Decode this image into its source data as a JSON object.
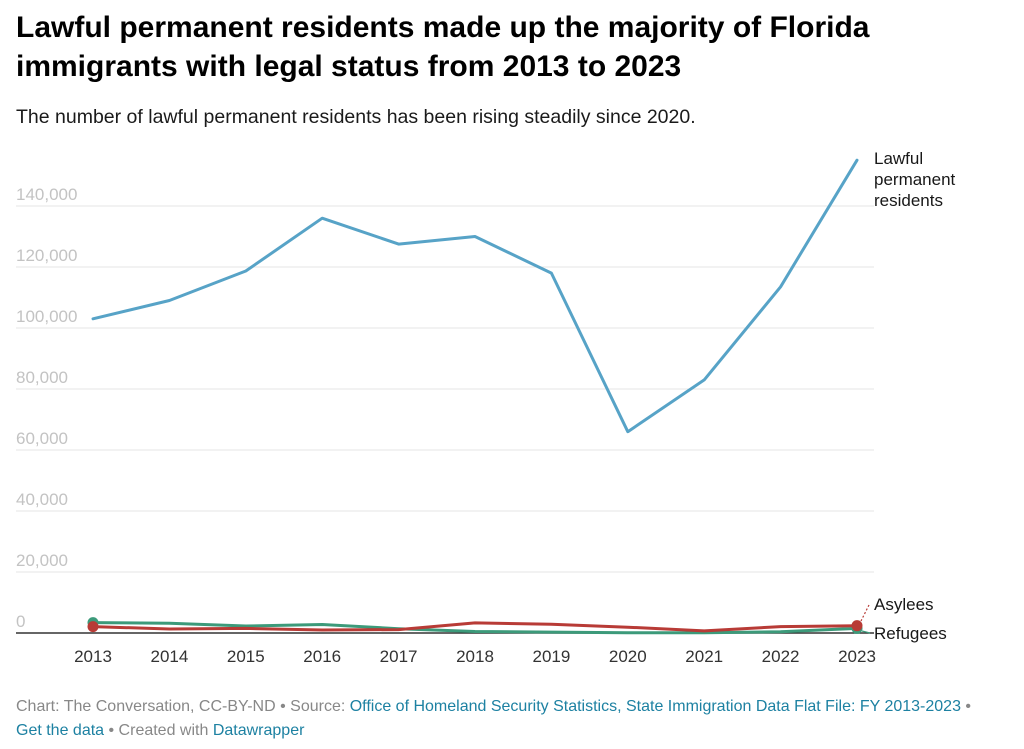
{
  "title": "Lawful permanent residents made up the majority of Florida immigrants with legal status from 2013 to 2023",
  "subtitle": "The number of lawful permanent residents has been rising steadily since 2020.",
  "chart_data": {
    "type": "line",
    "x": [
      "2013",
      "2014",
      "2015",
      "2016",
      "2017",
      "2018",
      "2019",
      "2020",
      "2021",
      "2022",
      "2023"
    ],
    "ylim": [
      0,
      150000
    ],
    "yticks": [
      "0",
      "20,000",
      "40,000",
      "60,000",
      "80,000",
      "100,000",
      "120,000",
      "140,000"
    ],
    "ytick_values": [
      0,
      20000,
      40000,
      60000,
      80000,
      100000,
      120000,
      140000
    ],
    "grid": true,
    "series": [
      {
        "name": "Lawful permanent residents",
        "name_lines": [
          "Lawful",
          "permanent",
          "residents"
        ],
        "color": "#57a3c7",
        "values": [
          103000,
          109000,
          118700,
          136000,
          127500,
          130000,
          118000,
          66000,
          83000,
          113500,
          155000
        ]
      },
      {
        "name": "Asylees",
        "name_lines": [
          "Asylees"
        ],
        "color": "#b83b36",
        "values": [
          2100,
          1300,
          1500,
          1000,
          1100,
          3300,
          2900,
          1900,
          700,
          2100,
          2400
        ]
      },
      {
        "name": "Refugees",
        "name_lines": [
          "Refugees"
        ],
        "color": "#3c9a7a",
        "values": [
          3400,
          3200,
          2300,
          2800,
          1400,
          500,
          300,
          100,
          100,
          400,
          1500
        ]
      }
    ]
  },
  "footer": {
    "prefix": "Chart: The Conversation, CC-BY-ND • Source: ",
    "source_link": "Office of Homeland Security Statistics, State Immigration Data Flat File: FY 2013-2023",
    "sep": " • ",
    "data_link": "Get the data",
    "created": " • Created with ",
    "tool_link": "Datawrapper"
  }
}
